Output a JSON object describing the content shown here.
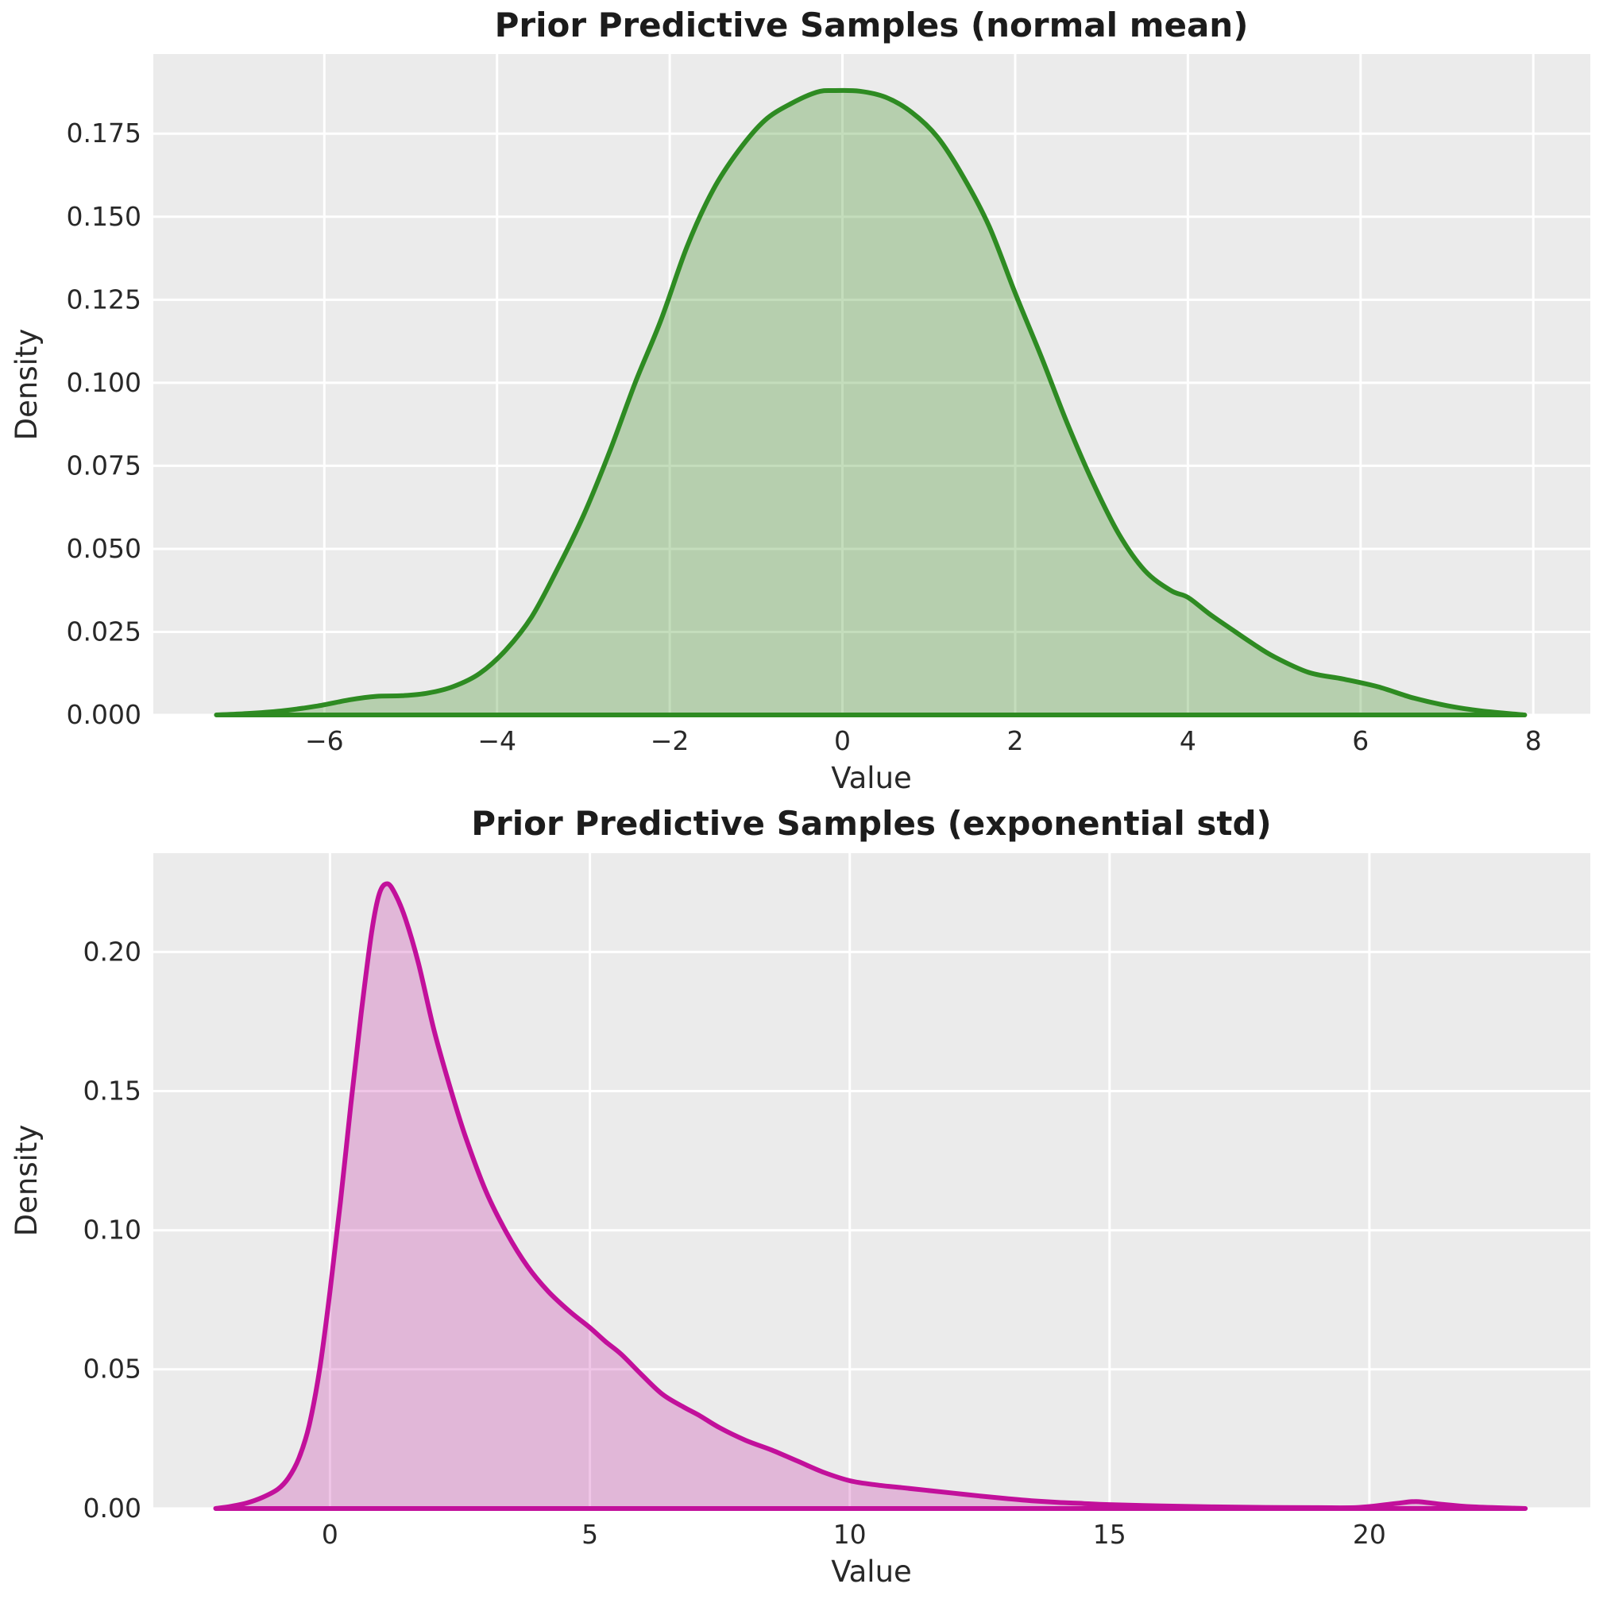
{
  "figure": {
    "background": "#ffffff",
    "axes_background": "#ebebeb",
    "grid_color": "#ffffff",
    "tick_color": "#282828",
    "title_color": "#1c1c1c"
  },
  "chart_data": [
    {
      "type": "area",
      "subtype": "kde",
      "title": "Prior Predictive Samples (normal mean)",
      "xlabel": "Value",
      "ylabel": "Density",
      "line_color": "#2e8b22",
      "fill_color": "rgba(61,142,33,0.30)",
      "grid": true,
      "legend": null,
      "xlim": [
        -7.98,
        8.66
      ],
      "ylim": [
        0,
        0.199
      ],
      "x_ticks": [
        {
          "v": -6,
          "label": "−6"
        },
        {
          "v": -4,
          "label": "−4"
        },
        {
          "v": -2,
          "label": "−2"
        },
        {
          "v": 0,
          "label": "0"
        },
        {
          "v": 2,
          "label": "2"
        },
        {
          "v": 4,
          "label": "4"
        },
        {
          "v": 6,
          "label": "6"
        },
        {
          "v": 8,
          "label": "8"
        }
      ],
      "y_ticks": [
        {
          "v": 0.0,
          "label": "0.000"
        },
        {
          "v": 0.025,
          "label": "0.025"
        },
        {
          "v": 0.05,
          "label": "0.050"
        },
        {
          "v": 0.075,
          "label": "0.075"
        },
        {
          "v": 0.1,
          "label": "0.100"
        },
        {
          "v": 0.125,
          "label": "0.125"
        },
        {
          "v": 0.15,
          "label": "0.150"
        },
        {
          "v": 0.175,
          "label": "0.175"
        }
      ],
      "points": [
        [
          -7.25,
          0.0
        ],
        [
          -6.9,
          0.0004
        ],
        [
          -6.5,
          0.0012
        ],
        [
          -6.1,
          0.0026
        ],
        [
          -5.7,
          0.0046
        ],
        [
          -5.4,
          0.0056
        ],
        [
          -5.1,
          0.0058
        ],
        [
          -4.8,
          0.0066
        ],
        [
          -4.5,
          0.0086
        ],
        [
          -4.2,
          0.0125
        ],
        [
          -3.9,
          0.0195
        ],
        [
          -3.6,
          0.0295
        ],
        [
          -3.3,
          0.044
        ],
        [
          -3.0,
          0.06
        ],
        [
          -2.7,
          0.079
        ],
        [
          -2.4,
          0.1
        ],
        [
          -2.1,
          0.119
        ],
        [
          -1.8,
          0.141
        ],
        [
          -1.5,
          0.158
        ],
        [
          -1.2,
          0.17
        ],
        [
          -0.9,
          0.179
        ],
        [
          -0.6,
          0.184
        ],
        [
          -0.3,
          0.1875
        ],
        [
          -0.1,
          0.188
        ],
        [
          0.2,
          0.1878
        ],
        [
          0.5,
          0.186
        ],
        [
          0.8,
          0.1815
        ],
        [
          1.1,
          0.174
        ],
        [
          1.4,
          0.162
        ],
        [
          1.7,
          0.147
        ],
        [
          2.0,
          0.127
        ],
        [
          2.3,
          0.108
        ],
        [
          2.6,
          0.088
        ],
        [
          2.9,
          0.07
        ],
        [
          3.2,
          0.0545
        ],
        [
          3.5,
          0.0435
        ],
        [
          3.8,
          0.0375
        ],
        [
          4.0,
          0.0354
        ],
        [
          4.25,
          0.0304
        ],
        [
          4.5,
          0.0259
        ],
        [
          4.75,
          0.0215
        ],
        [
          5.0,
          0.0175
        ],
        [
          5.4,
          0.0128
        ],
        [
          5.8,
          0.0108
        ],
        [
          6.2,
          0.0085
        ],
        [
          6.6,
          0.0052
        ],
        [
          7.0,
          0.0028
        ],
        [
          7.4,
          0.0012
        ],
        [
          7.9,
          0.0
        ]
      ]
    },
    {
      "type": "area",
      "subtype": "kde",
      "title": "Prior Predictive Samples (exponential std)",
      "xlabel": "Value",
      "ylabel": "Density",
      "line_color": "#c2109b",
      "fill_color": "rgba(194,16,155,0.24)",
      "grid": true,
      "legend": null,
      "xlim": [
        -3.4,
        24.25
      ],
      "ylim": [
        0,
        0.2355
      ],
      "x_ticks": [
        {
          "v": 0,
          "label": "0"
        },
        {
          "v": 5,
          "label": "5"
        },
        {
          "v": 10,
          "label": "10"
        },
        {
          "v": 15,
          "label": "15"
        },
        {
          "v": 20,
          "label": "20"
        }
      ],
      "y_ticks": [
        {
          "v": 0.0,
          "label": "0.00"
        },
        {
          "v": 0.05,
          "label": "0.05"
        },
        {
          "v": 0.1,
          "label": "0.10"
        },
        {
          "v": 0.15,
          "label": "0.15"
        },
        {
          "v": 0.2,
          "label": "0.20"
        }
      ],
      "points": [
        [
          -2.2,
          0.0
        ],
        [
          -1.9,
          0.0008
        ],
        [
          -1.6,
          0.002
        ],
        [
          -1.3,
          0.004
        ],
        [
          -1.0,
          0.007
        ],
        [
          -0.8,
          0.011
        ],
        [
          -0.6,
          0.018
        ],
        [
          -0.4,
          0.03
        ],
        [
          -0.2,
          0.05
        ],
        [
          0.0,
          0.078
        ],
        [
          0.2,
          0.11
        ],
        [
          0.4,
          0.145
        ],
        [
          0.6,
          0.178
        ],
        [
          0.8,
          0.207
        ],
        [
          0.95,
          0.221
        ],
        [
          1.1,
          0.2245
        ],
        [
          1.25,
          0.221
        ],
        [
          1.45,
          0.212
        ],
        [
          1.7,
          0.196
        ],
        [
          2.0,
          0.172
        ],
        [
          2.3,
          0.152
        ],
        [
          2.6,
          0.134
        ],
        [
          3.0,
          0.114
        ],
        [
          3.4,
          0.099
        ],
        [
          3.8,
          0.087
        ],
        [
          4.2,
          0.078
        ],
        [
          4.6,
          0.071
        ],
        [
          5.0,
          0.065
        ],
        [
          5.3,
          0.06
        ],
        [
          5.6,
          0.0555
        ],
        [
          6.0,
          0.048
        ],
        [
          6.4,
          0.041
        ],
        [
          6.8,
          0.0365
        ],
        [
          7.1,
          0.0335
        ],
        [
          7.5,
          0.029
        ],
        [
          8.0,
          0.0245
        ],
        [
          8.5,
          0.021
        ],
        [
          9.0,
          0.017
        ],
        [
          9.5,
          0.013
        ],
        [
          10.0,
          0.01
        ],
        [
          10.5,
          0.0085
        ],
        [
          11.0,
          0.0075
        ],
        [
          11.5,
          0.0065
        ],
        [
          12.0,
          0.0055
        ],
        [
          12.5,
          0.0045
        ],
        [
          13.0,
          0.0036
        ],
        [
          13.5,
          0.0028
        ],
        [
          14.0,
          0.0022
        ],
        [
          14.5,
          0.0018
        ],
        [
          15.0,
          0.0014
        ],
        [
          16.0,
          0.0009
        ],
        [
          17.0,
          0.0006
        ],
        [
          18.0,
          0.0004
        ],
        [
          19.0,
          0.0003
        ],
        [
          19.8,
          0.0004
        ],
        [
          20.5,
          0.0018
        ],
        [
          20.9,
          0.0025
        ],
        [
          21.4,
          0.0015
        ],
        [
          22.0,
          0.0006
        ],
        [
          23.0,
          0.0
        ]
      ]
    }
  ]
}
